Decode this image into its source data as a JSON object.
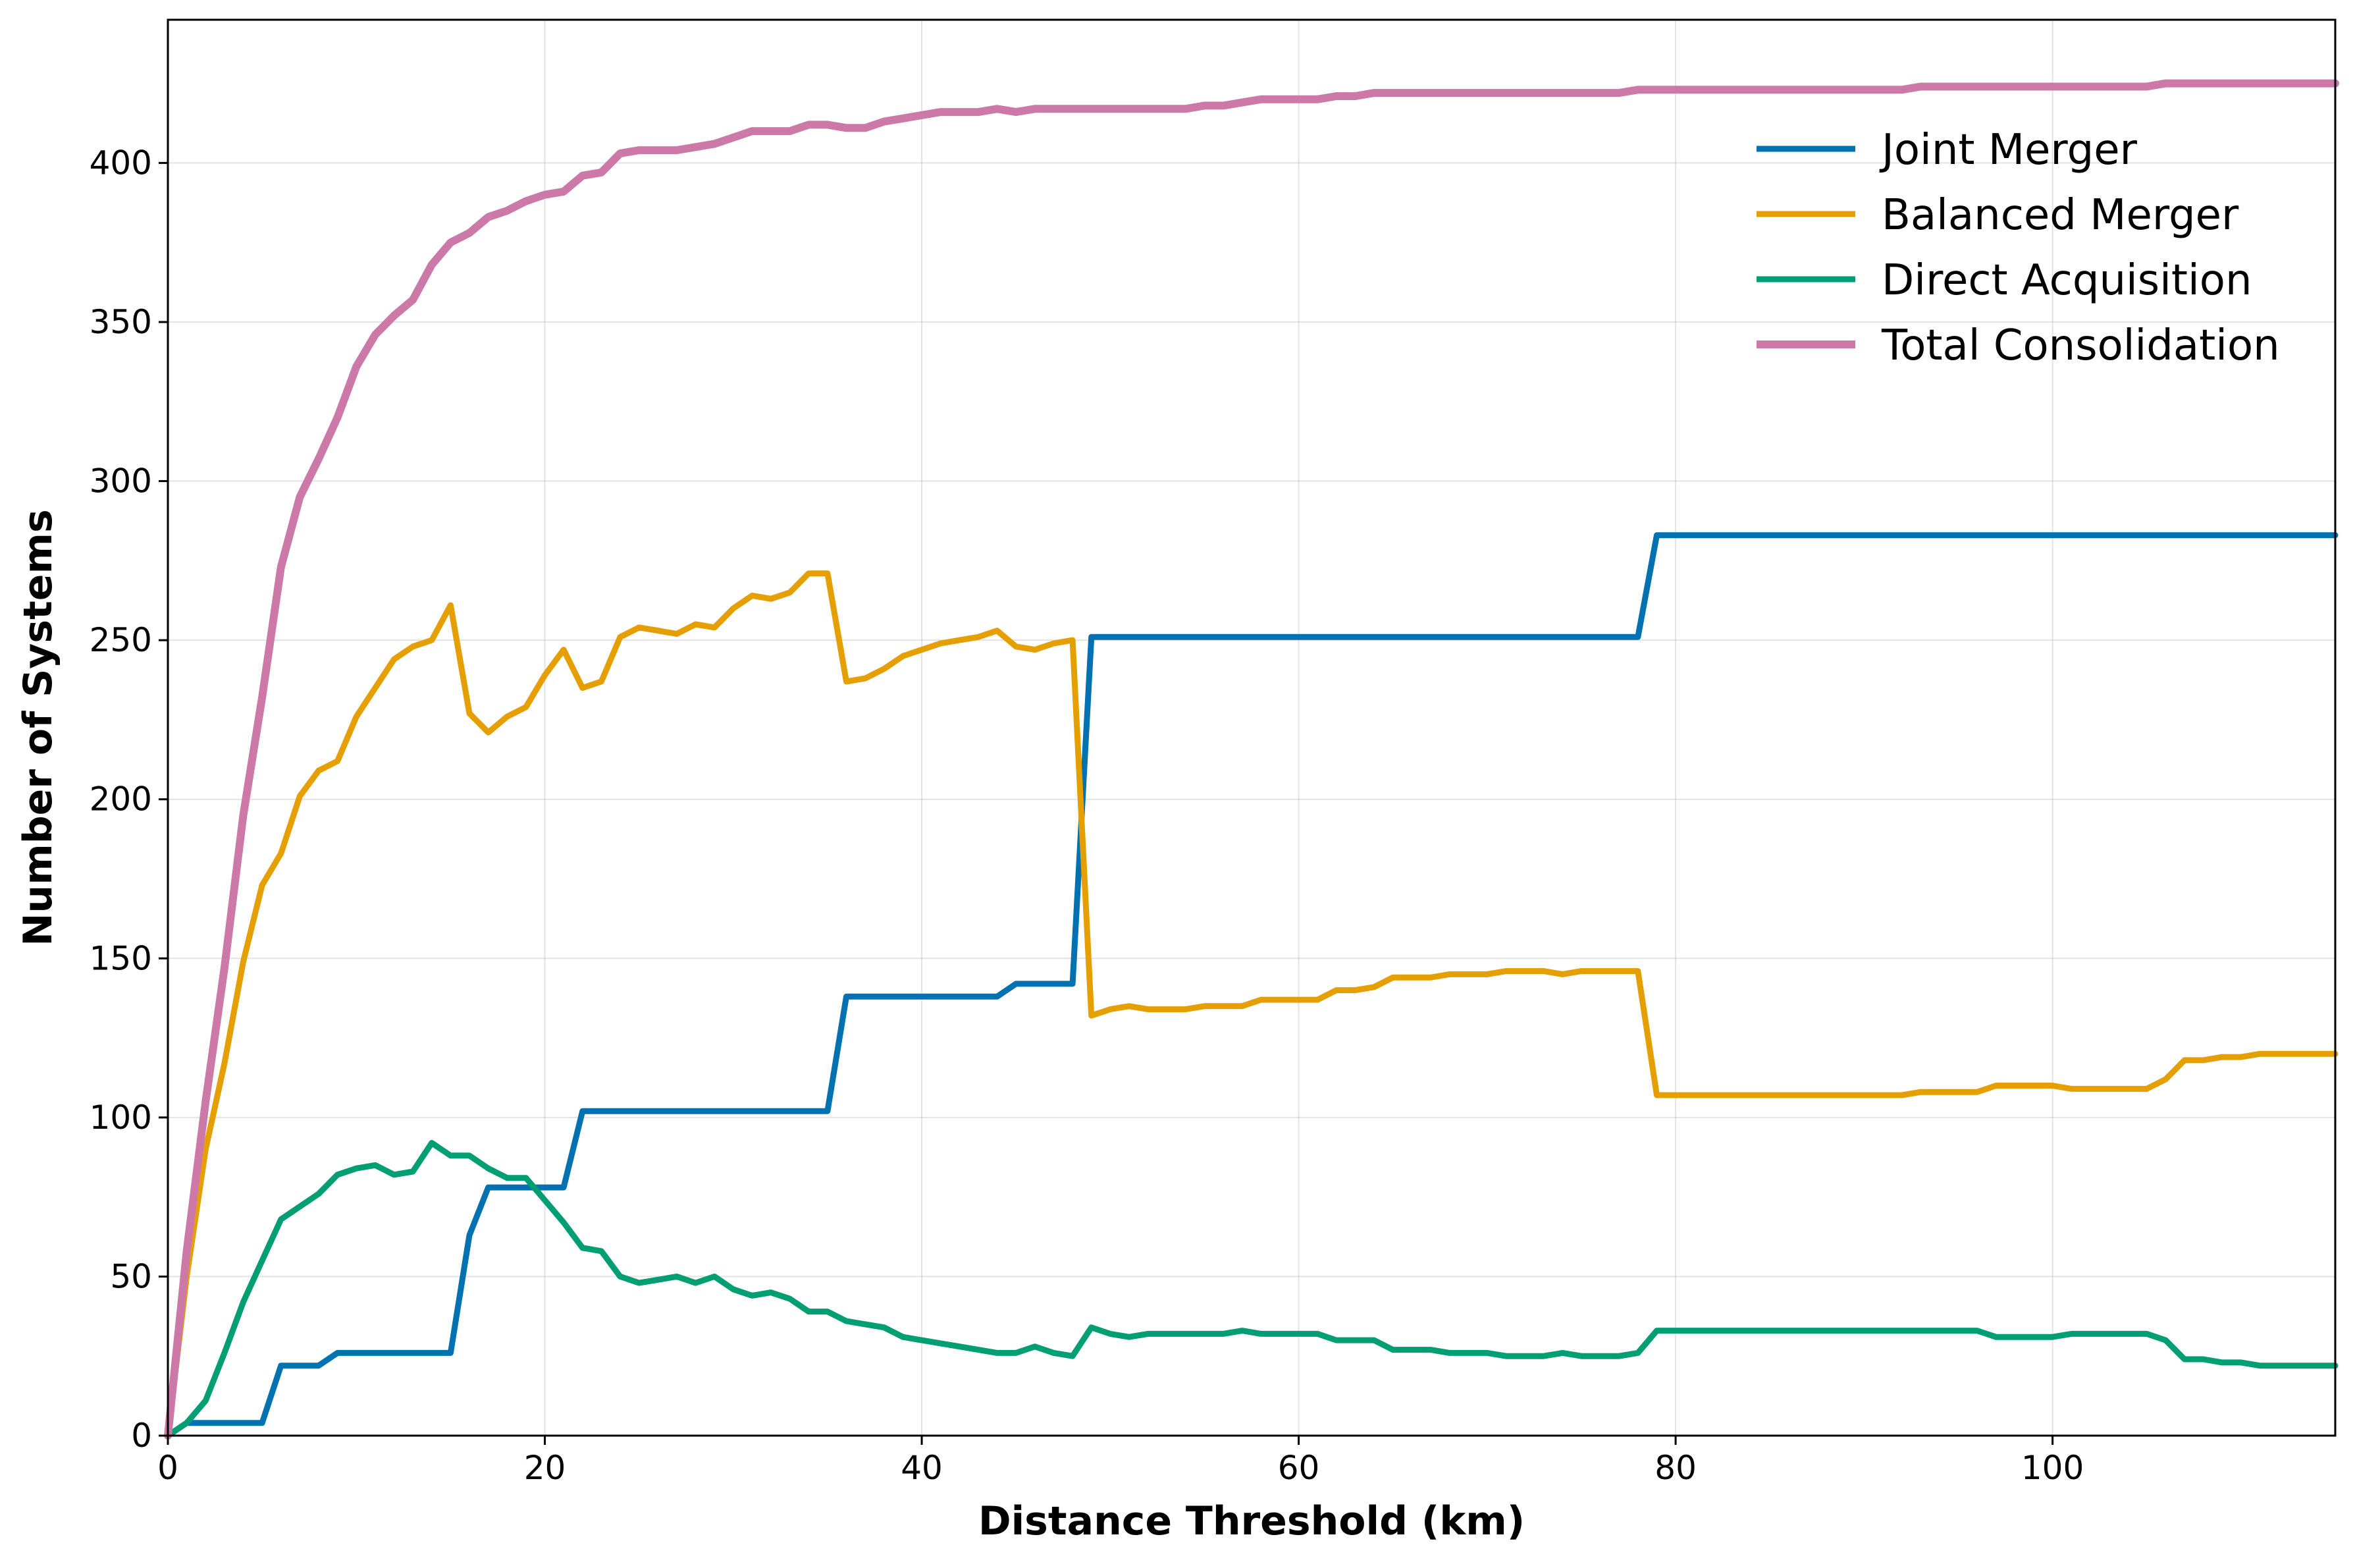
{
  "chart_data": {
    "type": "line",
    "title": "",
    "xlabel": "Distance Threshold (km)",
    "ylabel": "Number of Systems",
    "xlim": [
      0,
      115
    ],
    "ylim": [
      0,
      445
    ],
    "xticks": [
      0,
      20,
      40,
      60,
      80,
      100
    ],
    "yticks": [
      0,
      50,
      100,
      150,
      200,
      250,
      300,
      350,
      400
    ],
    "grid": true,
    "legend_position": "top-right",
    "x": [
      0,
      1,
      2,
      3,
      4,
      5,
      6,
      7,
      8,
      9,
      10,
      11,
      12,
      13,
      14,
      15,
      16,
      17,
      18,
      19,
      20,
      21,
      22,
      23,
      24,
      25,
      26,
      27,
      28,
      29,
      30,
      31,
      32,
      33,
      34,
      35,
      36,
      37,
      38,
      39,
      40,
      41,
      42,
      43,
      44,
      45,
      46,
      47,
      48,
      49,
      50,
      51,
      52,
      53,
      54,
      55,
      56,
      57,
      58,
      59,
      60,
      61,
      62,
      63,
      64,
      65,
      66,
      67,
      68,
      69,
      70,
      71,
      72,
      73,
      74,
      75,
      76,
      77,
      78,
      79,
      80,
      81,
      82,
      83,
      84,
      85,
      86,
      87,
      88,
      89,
      90,
      91,
      92,
      93,
      94,
      95,
      96,
      97,
      98,
      99,
      100,
      101,
      102,
      103,
      104,
      105,
      106,
      107,
      108,
      109,
      110,
      111,
      112,
      113,
      114,
      115
    ],
    "series": [
      {
        "name": "Joint Merger",
        "color": "#0072b2",
        "values": [
          0,
          4,
          4,
          4,
          4,
          4,
          22,
          22,
          22,
          26,
          26,
          26,
          26,
          26,
          26,
          26,
          63,
          78,
          78,
          78,
          78,
          78,
          102,
          102,
          102,
          102,
          102,
          102,
          102,
          102,
          102,
          102,
          102,
          102,
          102,
          102,
          138,
          138,
          138,
          138,
          138,
          138,
          138,
          138,
          138,
          142,
          142,
          142,
          142,
          251,
          251,
          251,
          251,
          251,
          251,
          251,
          251,
          251,
          251,
          251,
          251,
          251,
          251,
          251,
          251,
          251,
          251,
          251,
          251,
          251,
          251,
          251,
          251,
          251,
          251,
          251,
          251,
          251,
          251,
          283,
          283,
          283,
          283,
          283,
          283,
          283,
          283,
          283,
          283,
          283,
          283,
          283,
          283,
          283,
          283,
          283,
          283,
          283,
          283,
          283,
          283,
          283,
          283,
          283,
          283,
          283,
          283,
          283,
          283,
          283,
          283,
          283,
          283,
          283,
          283,
          283
        ]
      },
      {
        "name": "Balanced Merger",
        "color": "#e69f00",
        "values": [
          0,
          50,
          90,
          117,
          149,
          173,
          183,
          201,
          209,
          212,
          226,
          235,
          244,
          248,
          250,
          261,
          227,
          221,
          226,
          229,
          239,
          247,
          235,
          237,
          251,
          254,
          253,
          252,
          255,
          254,
          260,
          264,
          263,
          265,
          271,
          271,
          237,
          238,
          241,
          245,
          247,
          249,
          250,
          251,
          253,
          248,
          247,
          249,
          250,
          132,
          134,
          135,
          134,
          134,
          134,
          135,
          135,
          135,
          137,
          137,
          137,
          137,
          140,
          140,
          141,
          144,
          144,
          144,
          145,
          145,
          145,
          146,
          146,
          146,
          145,
          146,
          146,
          146,
          146,
          107,
          107,
          107,
          107,
          107,
          107,
          107,
          107,
          107,
          107,
          107,
          107,
          107,
          107,
          108,
          108,
          108,
          108,
          110,
          110,
          110,
          110,
          109,
          109,
          109,
          109,
          109,
          112,
          118,
          118,
          119,
          119,
          120,
          120,
          120,
          120,
          120
        ]
      },
      {
        "name": "Direct Acquisition",
        "color": "#009e73",
        "values": [
          0,
          4,
          11,
          26,
          42,
          55,
          68,
          72,
          76,
          82,
          84,
          85,
          82,
          83,
          92,
          88,
          88,
          84,
          81,
          81,
          74,
          67,
          59,
          58,
          50,
          48,
          49,
          50,
          48,
          50,
          46,
          44,
          45,
          43,
          39,
          39,
          36,
          35,
          34,
          31,
          30,
          29,
          28,
          27,
          26,
          26,
          28,
          26,
          25,
          34,
          32,
          31,
          32,
          32,
          32,
          32,
          32,
          33,
          32,
          32,
          32,
          32,
          30,
          30,
          30,
          27,
          27,
          27,
          26,
          26,
          26,
          25,
          25,
          25,
          26,
          25,
          25,
          25,
          26,
          33,
          33,
          33,
          33,
          33,
          33,
          33,
          33,
          33,
          33,
          33,
          33,
          33,
          33,
          33,
          33,
          33,
          33,
          31,
          31,
          31,
          31,
          32,
          32,
          32,
          32,
          32,
          30,
          24,
          24,
          23,
          23,
          22,
          22,
          22,
          22,
          22
        ]
      },
      {
        "name": "Total Consolidation",
        "color": "#cc79a7",
        "values": [
          0,
          58,
          105,
          147,
          195,
          232,
          273,
          295,
          307,
          320,
          336,
          346,
          352,
          357,
          368,
          375,
          378,
          383,
          385,
          388,
          390,
          391,
          396,
          397,
          403,
          404,
          404,
          404,
          405,
          406,
          408,
          410,
          410,
          410,
          412,
          412,
          411,
          411,
          413,
          414,
          415,
          416,
          416,
          416,
          417,
          416,
          417,
          417,
          417,
          417,
          417,
          417,
          417,
          417,
          417,
          418,
          418,
          419,
          420,
          420,
          420,
          420,
          421,
          421,
          422,
          422,
          422,
          422,
          422,
          422,
          422,
          422,
          422,
          422,
          422,
          422,
          422,
          422,
          423,
          423,
          423,
          423,
          423,
          423,
          423,
          423,
          423,
          423,
          423,
          423,
          423,
          423,
          423,
          424,
          424,
          424,
          424,
          424,
          424,
          424,
          424,
          424,
          424,
          424,
          424,
          424,
          425,
          425,
          425,
          425,
          425,
          425,
          425,
          425,
          425,
          425
        ]
      }
    ]
  }
}
